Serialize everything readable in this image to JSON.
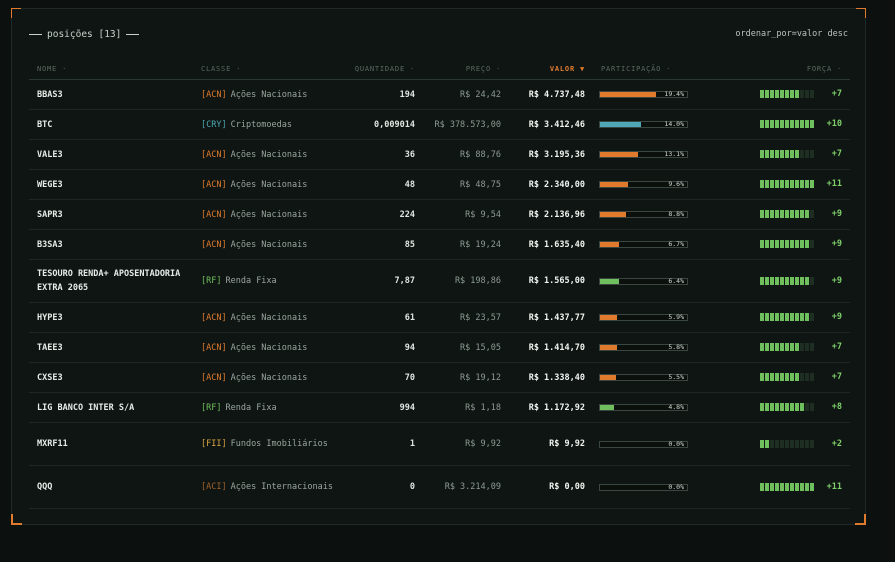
{
  "header": {
    "title": "posições [13]",
    "sort_info": "ordenar_por=valor desc"
  },
  "columns": {
    "nome": "NOME ·",
    "classe": "CLASSE ·",
    "quantidade": "QUANTIDADE ·",
    "preco": "PREÇO ·",
    "valor": "VALOR ▼",
    "participacao": "PARTICIPAÇÃO ·",
    "forca": "FORÇA ·"
  },
  "colors": {
    "acn": "#e07b2e",
    "cry": "#4fa9b8",
    "rf": "#6fbf5f",
    "fii": "#d9a441",
    "aci": "#a0602a",
    "force_on": "#6fbf5f",
    "force_off": "#1e2e22"
  },
  "rows": [
    {
      "name": "BBAS3",
      "tag": "[ACN]",
      "tag_kind": "acn",
      "class": "Ações Nacionais",
      "qty": "194",
      "price": "R$ 24,42",
      "value": "R$ 4.737,48",
      "pct": "19.4%",
      "pct_value": 19.4,
      "force_level": 8,
      "force": "+7"
    },
    {
      "name": "BTC",
      "tag": "[CRY]",
      "tag_kind": "cry",
      "class": "Criptomoedas",
      "qty": "0,009014",
      "price": "R$ 378.573,00",
      "value": "R$ 3.412,46",
      "pct": "14.0%",
      "pct_value": 14.0,
      "force_level": 11,
      "force": "+10"
    },
    {
      "name": "VALE3",
      "tag": "[ACN]",
      "tag_kind": "acn",
      "class": "Ações Nacionais",
      "qty": "36",
      "price": "R$ 88,76",
      "value": "R$ 3.195,36",
      "pct": "13.1%",
      "pct_value": 13.1,
      "force_level": 8,
      "force": "+7"
    },
    {
      "name": "WEGE3",
      "tag": "[ACN]",
      "tag_kind": "acn",
      "class": "Ações Nacionais",
      "qty": "48",
      "price": "R$ 48,75",
      "value": "R$ 2.340,00",
      "pct": "9.6%",
      "pct_value": 9.6,
      "force_level": 11,
      "force": "+11"
    },
    {
      "name": "SAPR3",
      "tag": "[ACN]",
      "tag_kind": "acn",
      "class": "Ações Nacionais",
      "qty": "224",
      "price": "R$ 9,54",
      "value": "R$ 2.136,96",
      "pct": "8.8%",
      "pct_value": 8.8,
      "force_level": 10,
      "force": "+9"
    },
    {
      "name": "B3SA3",
      "tag": "[ACN]",
      "tag_kind": "acn",
      "class": "Ações Nacionais",
      "qty": "85",
      "price": "R$ 19,24",
      "value": "R$ 1.635,40",
      "pct": "6.7%",
      "pct_value": 6.7,
      "force_level": 10,
      "force": "+9"
    },
    {
      "name": "TESOURO RENDA+ APOSENTADORIA EXTRA 2065",
      "tag": "[RF]",
      "tag_kind": "rf",
      "class": "Renda Fixa",
      "qty": "7,87",
      "price": "R$ 198,86",
      "value": "R$ 1.565,00",
      "pct": "6.4%",
      "pct_value": 6.4,
      "force_level": 10,
      "force": "+9",
      "tall": true
    },
    {
      "name": "HYPE3",
      "tag": "[ACN]",
      "tag_kind": "acn",
      "class": "Ações Nacionais",
      "qty": "61",
      "price": "R$ 23,57",
      "value": "R$ 1.437,77",
      "pct": "5.9%",
      "pct_value": 5.9,
      "force_level": 10,
      "force": "+9"
    },
    {
      "name": "TAEE3",
      "tag": "[ACN]",
      "tag_kind": "acn",
      "class": "Ações Nacionais",
      "qty": "94",
      "price": "R$ 15,05",
      "value": "R$ 1.414,70",
      "pct": "5.8%",
      "pct_value": 5.8,
      "force_level": 8,
      "force": "+7"
    },
    {
      "name": "CXSE3",
      "tag": "[ACN]",
      "tag_kind": "acn",
      "class": "Ações Nacionais",
      "qty": "70",
      "price": "R$ 19,12",
      "value": "R$ 1.338,40",
      "pct": "5.5%",
      "pct_value": 5.5,
      "force_level": 8,
      "force": "+7"
    },
    {
      "name": "LIG BANCO INTER S/A",
      "tag": "[RF]",
      "tag_kind": "rf",
      "class": "Renda Fixa",
      "qty": "994",
      "price": "R$ 1,18",
      "value": "R$ 1.172,92",
      "pct": "4.8%",
      "pct_value": 4.8,
      "force_level": 9,
      "force": "+8"
    },
    {
      "name": "MXRF11",
      "tag": "[FII]",
      "tag_kind": "fii",
      "class": "Fundos Imobiliários",
      "qty": "1",
      "price": "R$ 9,92",
      "value": "R$ 9,92",
      "pct": "0.0%",
      "pct_value": 0.0,
      "force_level": 2,
      "force": "+2",
      "tall": true
    },
    {
      "name": "QQQ",
      "tag": "[ACI]",
      "tag_kind": "aci",
      "class": "Ações Internacionais",
      "qty": "0",
      "price": "R$ 3.214,09",
      "value": "R$ 0,00",
      "pct": "0.0%",
      "pct_value": 0.0,
      "force_level": 11,
      "force": "+11",
      "tall": true
    }
  ]
}
